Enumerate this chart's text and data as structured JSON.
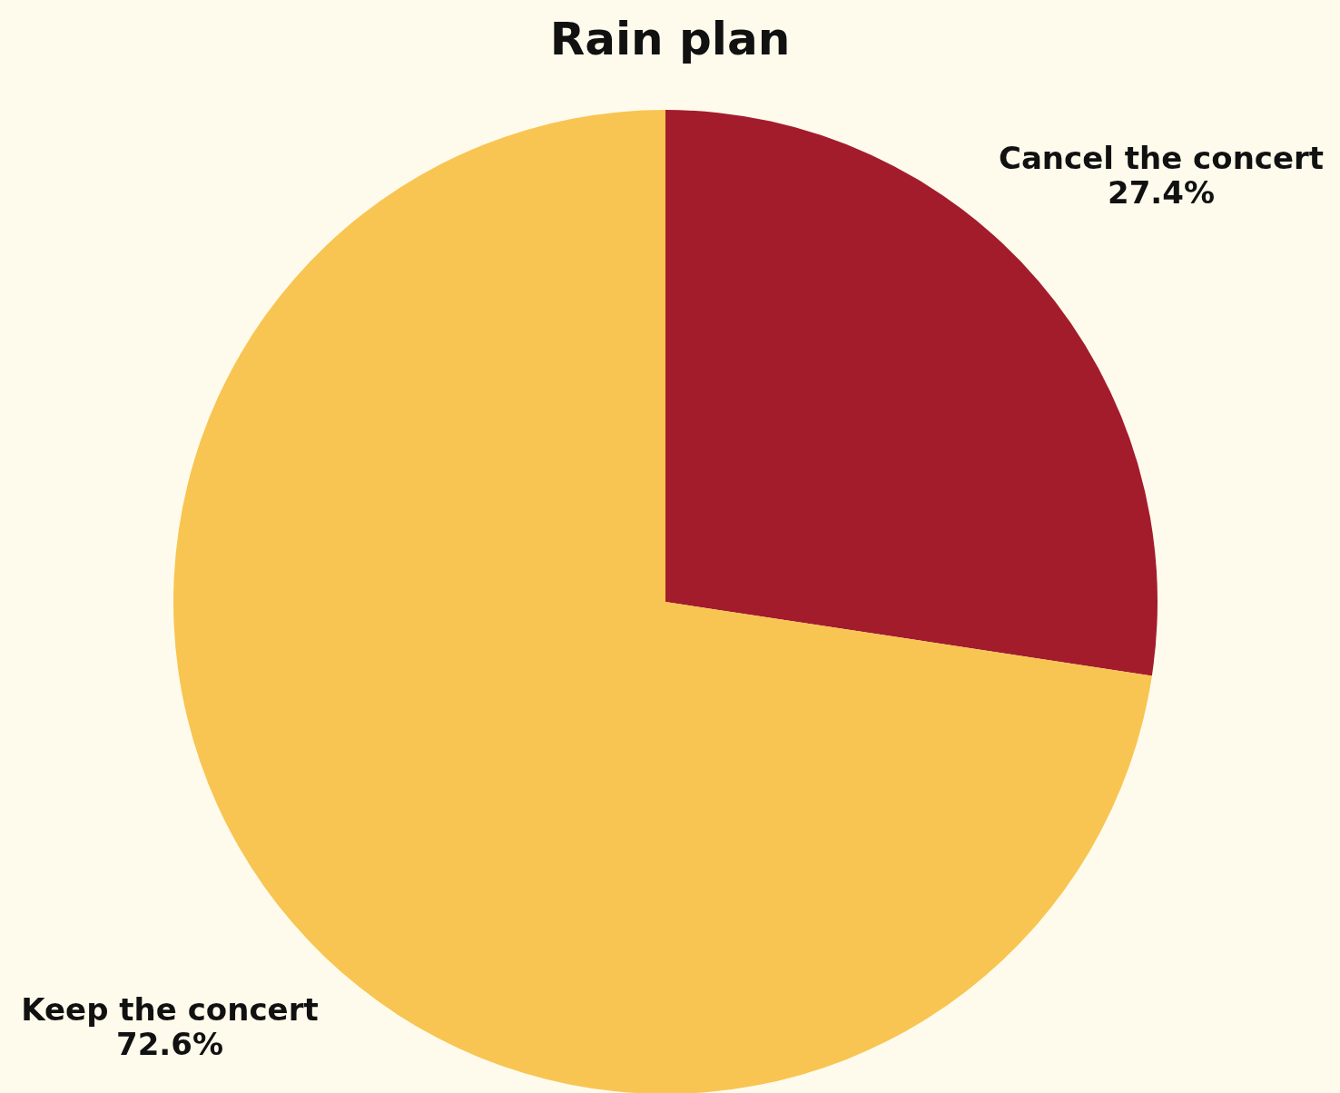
{
  "chart_data": {
    "type": "pie",
    "title": "Rain plan",
    "categories": [
      "Cancel the concert",
      "Keep the concert"
    ],
    "values": [
      27.4,
      72.6
    ],
    "colors": [
      "#a31c2c",
      "#f8c552"
    ],
    "value_labels": [
      "27.4%",
      "72.6%"
    ]
  }
}
